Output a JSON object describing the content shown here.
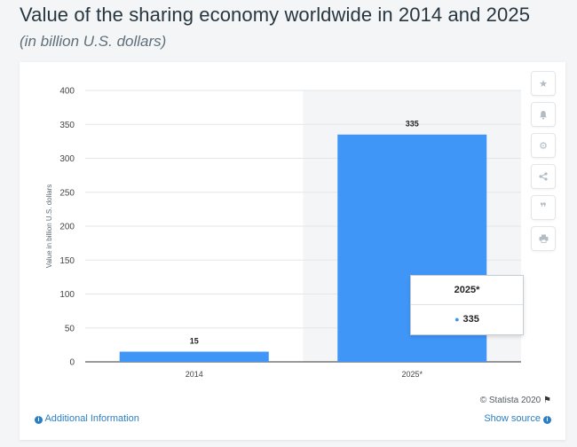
{
  "header": {
    "title": "Value of the sharing economy worldwide in 2014 and 2025",
    "subtitle": "(in billion U.S. dollars)"
  },
  "toolbar": {
    "icons": [
      "star-icon",
      "bell-icon",
      "gear-icon",
      "share-icon",
      "quote-icon",
      "print-icon"
    ]
  },
  "chart_data": {
    "type": "bar",
    "categories": [
      "2014",
      "2025*"
    ],
    "values": [
      15,
      335
    ],
    "data_labels": [
      "15",
      "335"
    ],
    "ylabel": "Value in billion U.S. dollars",
    "ylim": [
      0,
      400
    ],
    "yticks": [
      "0",
      "50",
      "100",
      "150",
      "200",
      "250",
      "300",
      "350",
      "400"
    ],
    "grid": true,
    "bar_color": "#4096f6",
    "highlight_color": "#f4f5f6"
  },
  "tooltip": {
    "category": "2025*",
    "value": "335"
  },
  "footer": {
    "credit": "© Statista 2020",
    "additional_info": "Additional Information",
    "show_source": "Show source"
  }
}
